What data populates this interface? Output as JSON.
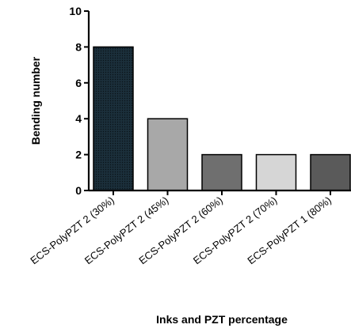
{
  "chart_data": {
    "type": "bar",
    "title": "",
    "xlabel": "Inks and PZT percentage",
    "ylabel": "Bending number",
    "ylim": [
      0,
      10
    ],
    "yticks": [
      0,
      2,
      4,
      6,
      8,
      10
    ],
    "grid": false,
    "categories": [
      "ECS-PolyPZT 2 (30%)",
      "ECS-PolyPZT 2 (45%)",
      "ECS-PolyPZT 2 (60%)",
      "ECS-PolyPZT 2 (70%)",
      "ECS-PolyPZT 1 (80%)"
    ],
    "values": [
      8,
      4,
      2,
      2,
      2
    ],
    "bar_colors": [
      "#142530",
      "#a8a8a8",
      "#6f6f6f",
      "#d6d6d6",
      "#5a5a5a"
    ],
    "first_bar_pattern": "dotted-dark"
  }
}
